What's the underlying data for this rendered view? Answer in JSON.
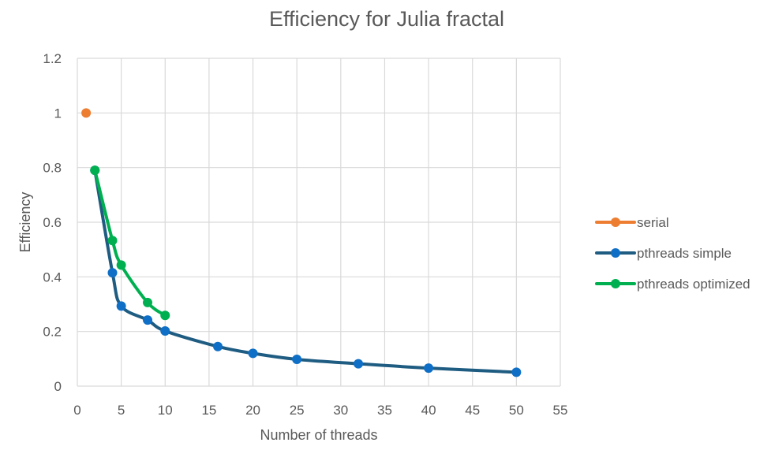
{
  "chart_data": {
    "type": "scatter",
    "title": "Efficiency for Julia fractal",
    "xlabel": "Number of threads",
    "ylabel": "Efficiency",
    "xlim": [
      0,
      55
    ],
    "ylim": [
      0,
      1.2
    ],
    "x_ticks": [
      0,
      5,
      10,
      15,
      20,
      25,
      30,
      35,
      40,
      45,
      50,
      55
    ],
    "y_ticks": [
      0,
      0.2,
      0.4,
      0.6,
      0.8,
      1,
      1.2
    ],
    "grid": true,
    "legend_position": "right",
    "series": [
      {
        "name": "serial",
        "color": "#ED7D31",
        "smooth": true,
        "x": [
          1
        ],
        "y": [
          1
        ]
      },
      {
        "name": "pthreads simple",
        "color": "#1F5C82",
        "marker_color": "#0F6FC6",
        "smooth": true,
        "x": [
          2,
          4,
          5,
          8,
          10,
          16,
          20,
          25,
          32,
          40,
          50
        ],
        "y": [
          0.79,
          0.415,
          0.293,
          0.242,
          0.202,
          0.145,
          0.12,
          0.098,
          0.082,
          0.066,
          0.051
        ]
      },
      {
        "name": "pthreads optimized",
        "color": "#00B050",
        "smooth": true,
        "x": [
          2,
          4,
          5,
          8,
          10
        ],
        "y": [
          0.79,
          0.533,
          0.443,
          0.306,
          0.259
        ]
      }
    ]
  }
}
